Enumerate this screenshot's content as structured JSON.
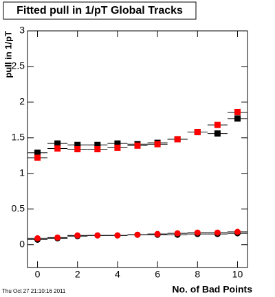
{
  "chart_data": {
    "type": "scatter",
    "title": "Fitted pull in 1/pT  Global Tracks",
    "x_label": "No. of Bad Points",
    "y_label": "pull in 1/pT",
    "timestamp": "Thu Oct 27 21:10:16 2011",
    "x": [
      0,
      1,
      2,
      3,
      4,
      5,
      6,
      7,
      8,
      9,
      10
    ],
    "xerr": 0.5,
    "xlim": [
      -0.5,
      10.5
    ],
    "xticks": [
      0,
      2,
      4,
      6,
      8,
      10
    ],
    "ylim": [
      -0.32,
      3
    ],
    "yticks": [
      0,
      0.5,
      1,
      1.5,
      2,
      2.5,
      3
    ],
    "series": [
      {
        "color": "#000000",
        "marker": "square",
        "values": [
          1.29,
          1.42,
          1.4,
          1.4,
          1.42,
          1.41,
          1.43,
          1.48,
          1.58,
          1.56,
          1.77
        ]
      },
      {
        "color": "#ff0000",
        "marker": "square",
        "values": [
          1.22,
          1.35,
          1.34,
          1.34,
          1.36,
          1.39,
          1.41,
          1.48,
          1.58,
          1.68,
          1.86
        ]
      },
      {
        "color": "#000000",
        "marker": "circle",
        "values": [
          0.07,
          0.09,
          0.12,
          0.13,
          0.13,
          0.14,
          0.14,
          0.14,
          0.15,
          0.15,
          0.16
        ]
      },
      {
        "color": "#ff0000",
        "marker": "circle",
        "values": [
          0.09,
          0.1,
          0.13,
          0.13,
          0.13,
          0.14,
          0.15,
          0.16,
          0.17,
          0.17,
          0.18
        ]
      }
    ]
  }
}
